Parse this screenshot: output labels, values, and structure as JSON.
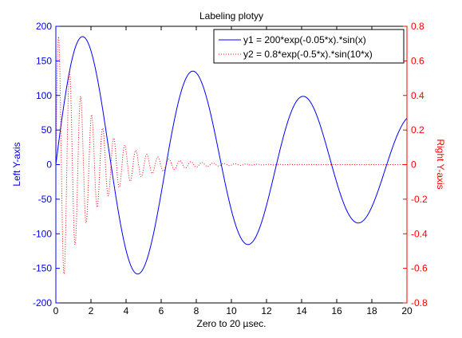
{
  "chart_data": {
    "type": "line",
    "title": "Labeling plotyy",
    "xlabel": "Zero to 20 µsec.",
    "ylabel_left": "Left Y-axis",
    "ylabel_right": "Right Y-axis",
    "xlim": [
      0,
      20
    ],
    "ylim_left": [
      -200,
      200
    ],
    "ylim_right": [
      -0.8,
      0.8
    ],
    "x_ticks": [
      "0",
      "2",
      "4",
      "6",
      "8",
      "10",
      "12",
      "14",
      "16",
      "18",
      "20"
    ],
    "y_left_ticks": [
      "-200",
      "-150",
      "-100",
      "-50",
      "0",
      "50",
      "100",
      "150",
      "200"
    ],
    "y_right_ticks": [
      "-0.8",
      "-0.6",
      "-0.4",
      "-0.2",
      "0",
      "0.2",
      "0.4",
      "0.6",
      "0.8"
    ],
    "grid": false,
    "legend_position": "top-right",
    "series": [
      {
        "name": "y1 = 200*exp(-0.05*x).*sin(x)",
        "axis": "left",
        "color": "#0000ff",
        "style": "solid",
        "x": [
          0,
          0.5,
          1,
          1.5,
          2,
          2.5,
          3,
          3.5,
          4,
          4.5,
          5,
          5.5,
          6,
          6.5,
          7,
          7.5,
          8,
          8.5,
          9,
          9.5,
          10,
          10.5,
          11,
          11.5,
          12,
          12.5,
          13,
          13.5,
          14,
          14.5,
          15,
          15.5,
          16,
          16.5,
          17,
          17.5,
          18,
          18.5,
          19,
          19.5,
          20
        ],
        "values": [
          0,
          93.6,
          160.1,
          185.2,
          164.5,
          105.6,
          24.3,
          -59.1,
          -123.9,
          -153.7,
          -149.3,
          -107.5,
          -41.2,
          32.1,
          92.5,
          127.3,
          131.1,
          104.2,
          54.4,
          -3.4,
          -55.0,
          -86.0,
          -99.7,
          -87.9,
          -56.2,
          -12.4,
          32.2,
          66.5,
          89.6,
          87.1,
          64.3,
          28.6,
          -12.2,
          -45.0,
          -65.8,
          -70.3,
          -61.6,
          -38.8,
          -7.5,
          22.8,
          67.2
        ]
      },
      {
        "name": "y2 = 0.8*exp(-0.5*x).*sin(10*x)",
        "axis": "right",
        "color": "#ff0000",
        "style": "dotted",
        "x": [
          0,
          0.05,
          0.1,
          0.15,
          0.2,
          0.25,
          0.3,
          0.35,
          0.4,
          0.45,
          0.5,
          0.55,
          0.6,
          0.65,
          0.7,
          0.75,
          0.8,
          0.85,
          0.9,
          0.95,
          1.0,
          1.2,
          1.4,
          1.6,
          1.8,
          2.0,
          2.5,
          3.0,
          3.5,
          4.0,
          4.5,
          5.0,
          6.0,
          7.0,
          8.0,
          10.0,
          12.0,
          14.0,
          16.0,
          18.0,
          20.0
        ],
        "values": [
          0,
          0.37,
          0.64,
          0.74,
          0.65,
          0.42,
          0.13,
          -0.09,
          -0.31,
          -0.49,
          -0.74,
          -0.56,
          -0.22,
          0.15,
          0.46,
          0.65,
          0.5,
          0.2,
          0.11,
          -0.33,
          -0.61,
          -0.2,
          0.45,
          -0.28,
          -0.3,
          0.45,
          -0.12,
          -0.22,
          0.18,
          0.1,
          -0.09,
          -0.05,
          0.04,
          0.02,
          -0.01,
          0,
          0,
          0,
          0,
          0,
          0
        ]
      }
    ]
  }
}
